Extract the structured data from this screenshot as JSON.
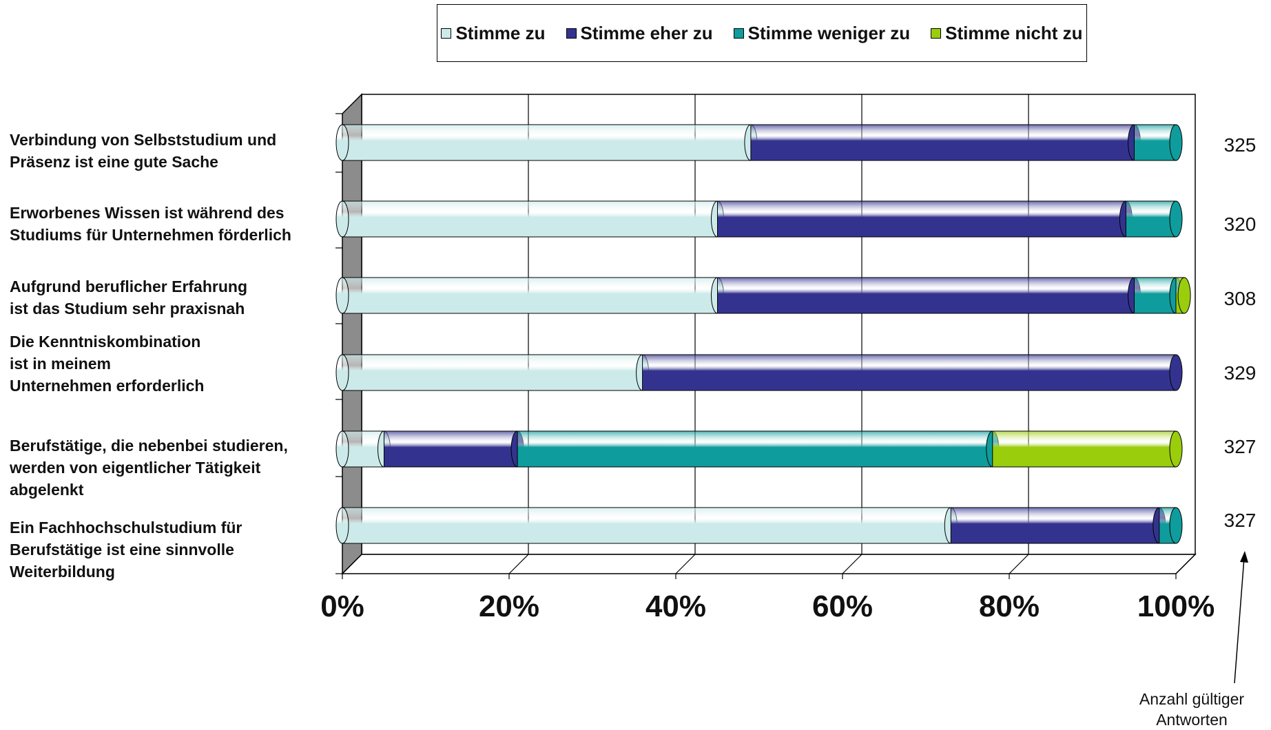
{
  "chart_data": {
    "type": "bar",
    "orientation": "horizontal",
    "stacked": "percent",
    "style": "3d-cylinder",
    "categories": [
      "Verbindung von Selbststudium und\nPräsenz ist  eine gute Sache",
      "Erworbenes Wissen ist während des\nStudiums für Unternehmen förderlich",
      "Aufgrund beruflicher Erfahrung\nist das Studium sehr praxisnah",
      "Die Kenntniskombination\nist in meinem\nUnternehmen erforderlich",
      "Berufstätige, die nebenbei studieren,\nwerden von eigentlicher Tätigkeit\nabgelenkt",
      "Ein Fachhochschulstudium für\nBerufstätige ist eine sinnvolle\nWeiterbildung"
    ],
    "series": [
      {
        "name": "Stimme zu",
        "color": "#cdeaea",
        "values": [
          49,
          45,
          45,
          36,
          5,
          73
        ]
      },
      {
        "name": "Stimme eher zu",
        "color": "#33338f",
        "values": [
          46,
          49,
          50,
          64,
          16,
          25
        ]
      },
      {
        "name": "Stimme weniger zu",
        "color": "#0f9c9c",
        "values": [
          5,
          6,
          5,
          0,
          57,
          2
        ]
      },
      {
        "name": "Stimme nicht zu",
        "color": "#9acd0c",
        "values": [
          0,
          0,
          1,
          0,
          22,
          0
        ]
      }
    ],
    "counts": [
      "325",
      "320",
      "308",
      "329",
      "327",
      "327"
    ],
    "ticks": [
      "0%",
      "20%",
      "40%",
      "60%",
      "80%",
      "100%"
    ],
    "xlim": [
      0,
      100
    ],
    "grid": true,
    "legend_position": "top",
    "annotation": "Anzahl gültiger\nAntworten",
    "colors": {
      "wall": "#ffffff",
      "side_wall": "#8c8c8c",
      "gridline": "#000000"
    }
  }
}
